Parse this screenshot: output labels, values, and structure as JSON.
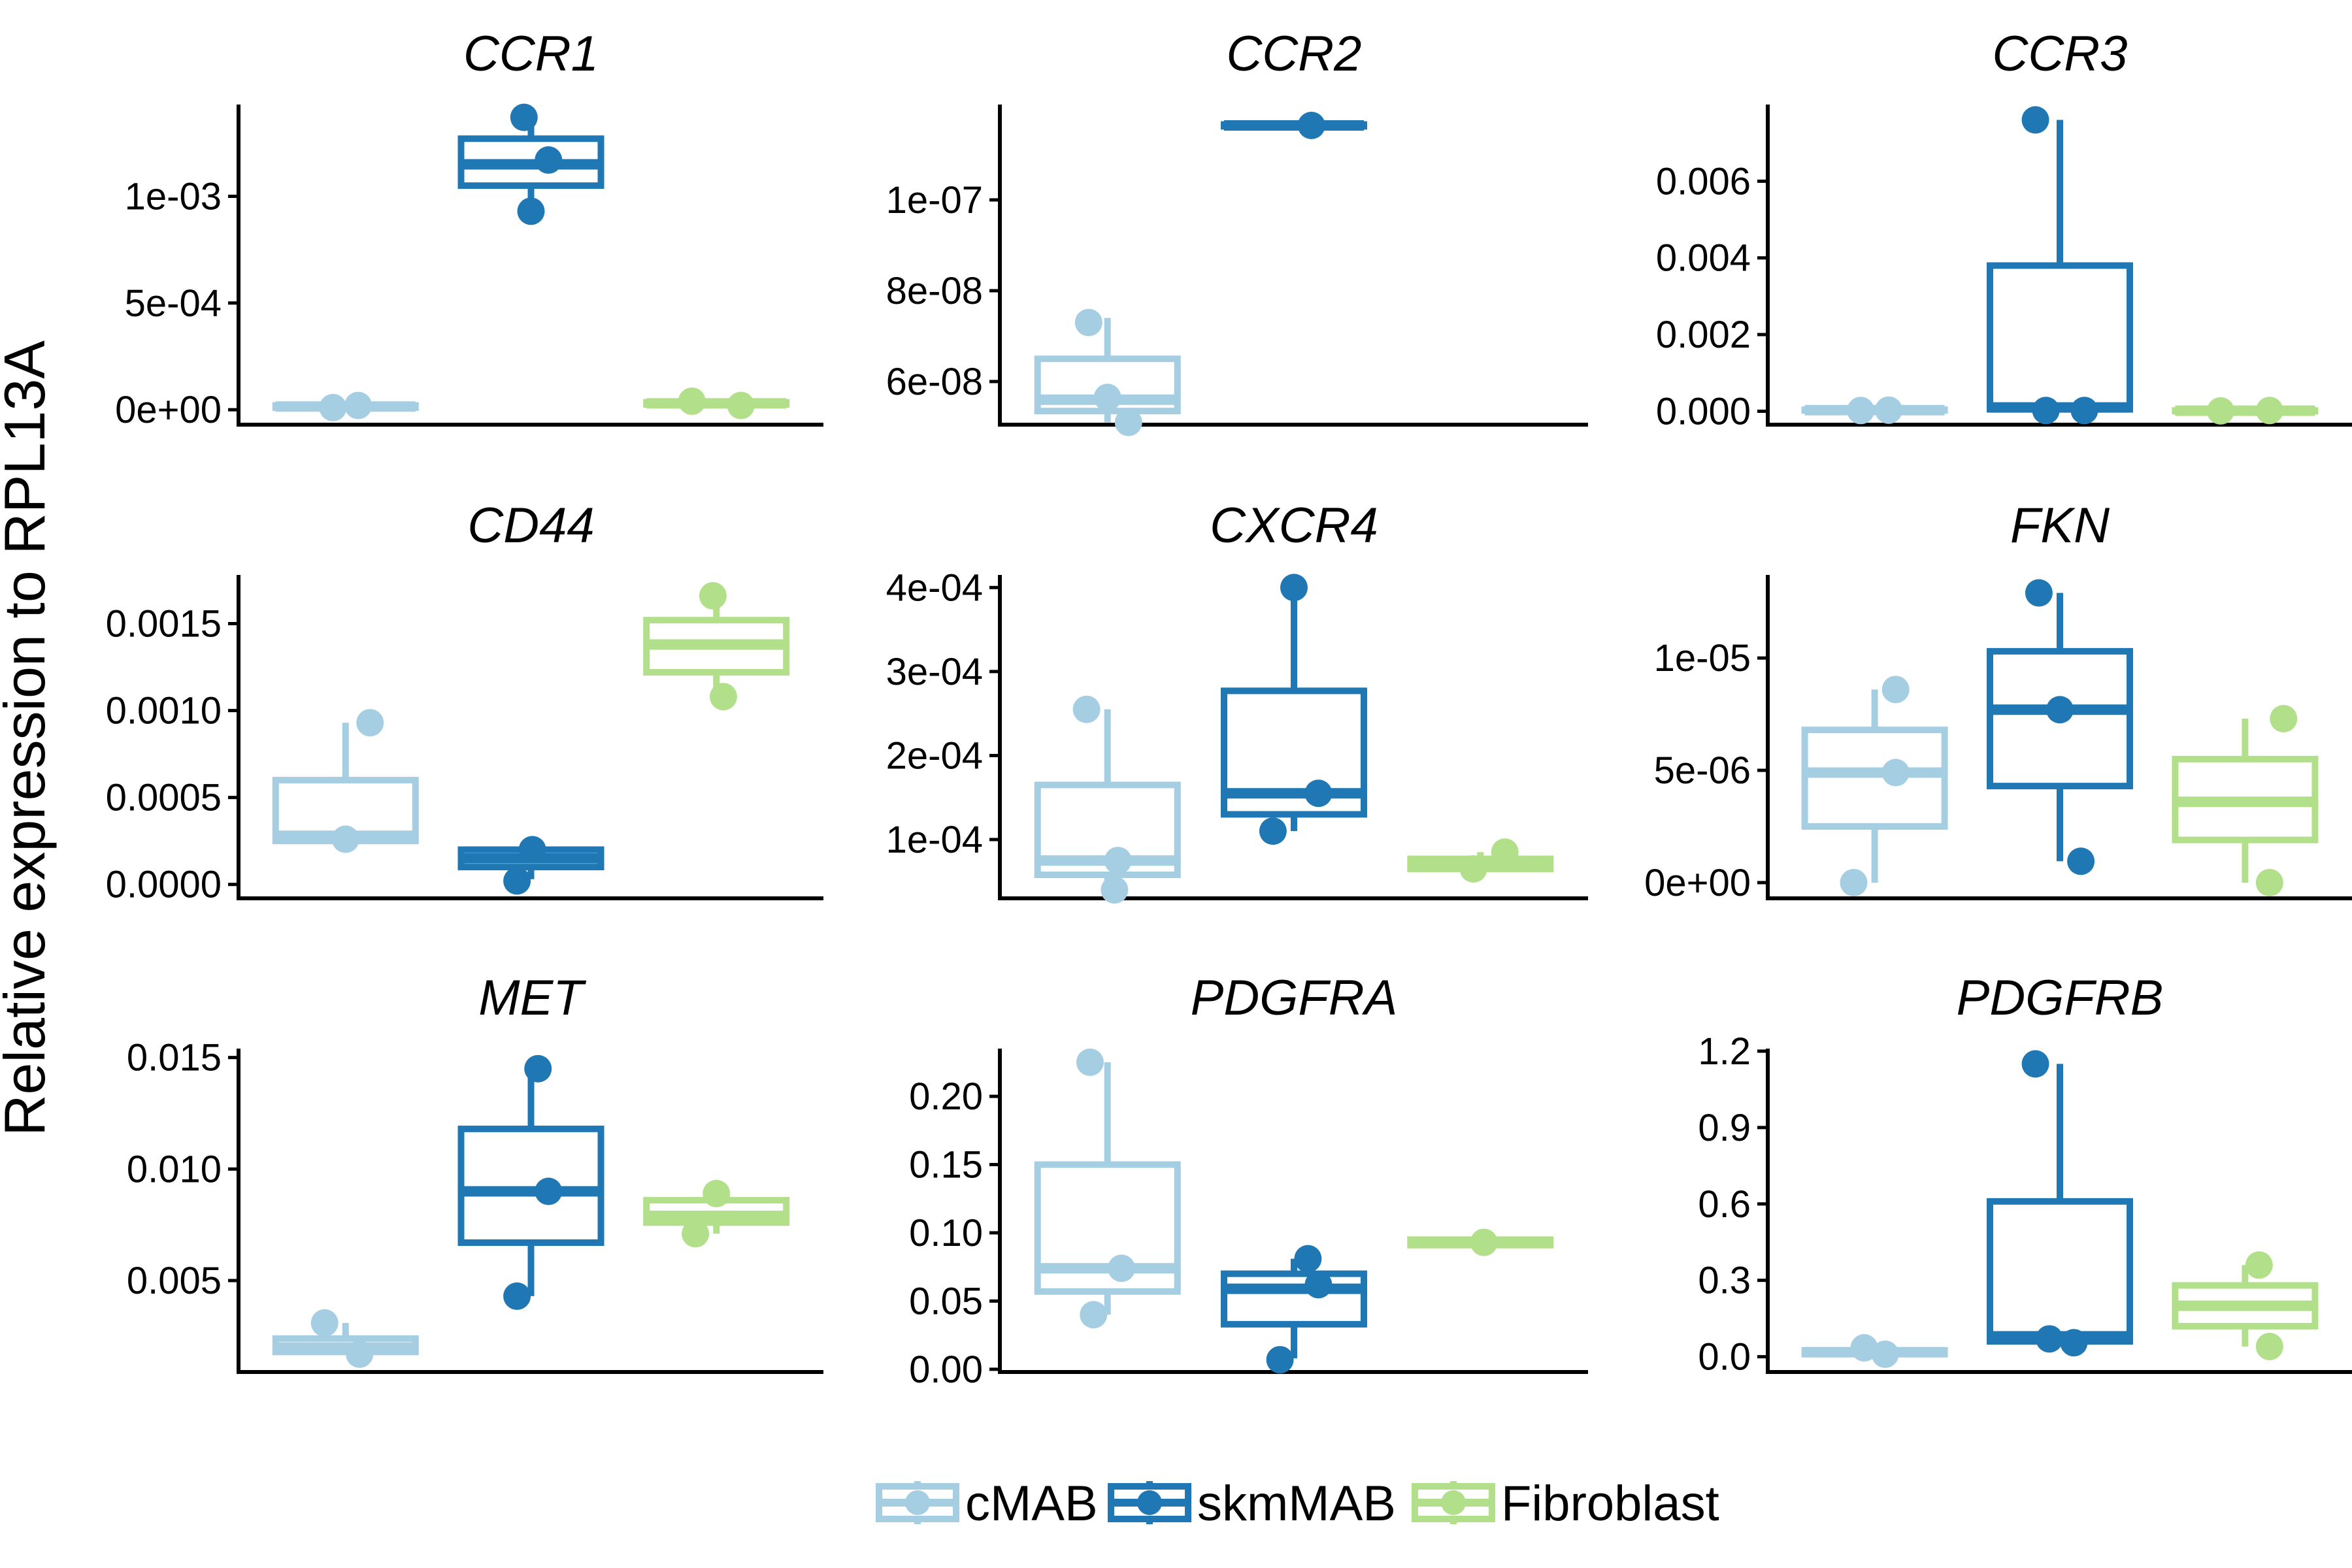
{
  "y_axis_title": "Relative expression to RPL13A",
  "colors": {
    "cMAB": "#a6cee3",
    "skmMAB": "#1f78b4",
    "Fibroblast": "#b2df8a"
  },
  "legend": {
    "entries": [
      {
        "label": "cMAB",
        "color": "#a6cee3"
      },
      {
        "label": "skmMAB",
        "color": "#1f78b4"
      },
      {
        "label": "Fibroblast",
        "color": "#b2df8a"
      }
    ]
  },
  "chart_data": [
    {
      "type": "box",
      "title": "CCR1",
      "ylim": [
        -7e-05,
        0.00143
      ],
      "yticks": [
        {
          "v": 0,
          "label": "0e+00"
        },
        {
          "v": 0.0005,
          "label": "5e-04"
        },
        {
          "v": 0.001,
          "label": "1e-03"
        }
      ],
      "groups": [
        {
          "name": "cMAB",
          "box": [
            5e-06,
            1e-05,
            1.5e-05,
            2e-05,
            2.5e-05
          ],
          "points": [
            {
              "x": -0.18,
              "y": 1e-05
            },
            {
              "x": 0.18,
              "y": 2e-05
            }
          ]
        },
        {
          "name": "skmMAB",
          "box": [
            0.00092,
            0.00105,
            0.00115,
            0.00127,
            0.00137
          ],
          "points": [
            {
              "x": -0.1,
              "y": 0.00137
            },
            {
              "x": 0.0,
              "y": 0.00093
            },
            {
              "x": 0.25,
              "y": 0.00117
            }
          ]
        },
        {
          "name": "Fibroblast",
          "box": [
            2e-05,
            2.5e-05,
            3e-05,
            3.5e-05,
            4e-05
          ],
          "points": [
            {
              "x": -0.35,
              "y": 4e-05
            },
            {
              "x": 0.35,
              "y": 2e-05
            }
          ]
        }
      ]
    },
    {
      "type": "box",
      "title": "CCR2",
      "ylim": [
        5.05e-08,
        1.21e-07
      ],
      "yticks": [
        {
          "v": 6e-08,
          "label": "6e-08"
        },
        {
          "v": 8e-08,
          "label": "8e-08"
        },
        {
          "v": 1e-07,
          "label": "1e-07"
        }
      ],
      "groups": [
        {
          "name": "cMAB",
          "box": [
            5.1e-08,
            5.35e-08,
            5.6e-08,
            6.5e-08,
            7.4e-08
          ],
          "points": [
            {
              "x": -0.27,
              "y": 7.3e-08
            },
            {
              "x": 0.0,
              "y": 5.65e-08
            },
            {
              "x": 0.3,
              "y": 5.1e-08
            }
          ]
        },
        {
          "name": "skmMAB",
          "box": [
            1.16e-07,
            1.162e-07,
            1.164e-07,
            1.166e-07,
            1.168e-07
          ],
          "points": [
            {
              "x": 0.25,
              "y": 1.164e-07
            }
          ]
        },
        {
          "name": "Fibroblast",
          "box": null,
          "points": []
        }
      ]
    },
    {
      "type": "box",
      "title": "CCR3",
      "ylim": [
        -0.00035,
        0.008
      ],
      "yticks": [
        {
          "v": 0,
          "label": "0.000"
        },
        {
          "v": 0.002,
          "label": "0.002"
        },
        {
          "v": 0.004,
          "label": "0.004"
        },
        {
          "v": 0.006,
          "label": "0.006"
        }
      ],
      "groups": [
        {
          "name": "cMAB",
          "box": [
            1e-05,
            2e-05,
            3e-05,
            4e-05,
            5e-05
          ],
          "points": [
            {
              "x": -0.2,
              "y": 2e-05
            },
            {
              "x": 0.2,
              "y": 3e-05
            }
          ]
        },
        {
          "name": "skmMAB",
          "box": [
            2e-05,
            5e-05,
            0.0001,
            0.0038,
            0.0076
          ],
          "points": [
            {
              "x": -0.35,
              "y": 0.0076
            },
            {
              "x": -0.2,
              "y": 2e-05
            },
            {
              "x": 0.35,
              "y": 2e-05
            }
          ]
        },
        {
          "name": "Fibroblast",
          "box": [
            5e-06,
            1e-05,
            1.5e-05,
            2e-05,
            2.5e-05
          ],
          "points": [
            {
              "x": -0.35,
              "y": 1e-05
            },
            {
              "x": 0.35,
              "y": 2e-05
            }
          ]
        }
      ]
    },
    {
      "type": "box",
      "title": "CD44",
      "ylim": [
        -8e-05,
        0.00178
      ],
      "yticks": [
        {
          "v": 0,
          "label": "0.0000"
        },
        {
          "v": 0.0005,
          "label": "0.0005"
        },
        {
          "v": 0.001,
          "label": "0.0010"
        },
        {
          "v": 0.0015,
          "label": "0.0015"
        }
      ],
      "groups": [
        {
          "name": "cMAB",
          "box": [
            0.00025,
            0.00025,
            0.00028,
            0.0006,
            0.00093
          ],
          "points": [
            {
              "x": 0.0,
              "y": 0.00026
            },
            {
              "x": 0.35,
              "y": 0.00093
            }
          ]
        },
        {
          "name": "skmMAB",
          "box": [
            3e-05,
            0.0001,
            0.00015,
            0.0002,
            0.00022
          ],
          "points": [
            {
              "x": -0.2,
              "y": 2e-05
            },
            {
              "x": 0.02,
              "y": 0.0002
            }
          ]
        },
        {
          "name": "Fibroblast",
          "box": [
            0.00108,
            0.00122,
            0.00138,
            0.00152,
            0.00166
          ],
          "points": [
            {
              "x": -0.05,
              "y": 0.00166
            },
            {
              "x": 0.1,
              "y": 0.00108
            }
          ]
        }
      ]
    },
    {
      "type": "box",
      "title": "CXCR4",
      "ylim": [
        3e-05,
        0.000415
      ],
      "yticks": [
        {
          "v": 0.0001,
          "label": "1e-04"
        },
        {
          "v": 0.0002,
          "label": "2e-04"
        },
        {
          "v": 0.0003,
          "label": "3e-04"
        },
        {
          "v": 0.0004,
          "label": "4e-04"
        }
      ],
      "groups": [
        {
          "name": "cMAB",
          "box": [
            4e-05,
            5.8e-05,
            7.5e-05,
            0.000165,
            0.000255
          ],
          "points": [
            {
              "x": -0.3,
              "y": 0.000255
            },
            {
              "x": 0.1,
              "y": 4e-05
            },
            {
              "x": 0.15,
              "y": 7.5e-05
            }
          ]
        },
        {
          "name": "skmMAB",
          "box": [
            0.00011,
            0.00013,
            0.000155,
            0.000277,
            0.0004
          ],
          "points": [
            {
              "x": -0.3,
              "y": 0.00011
            },
            {
              "x": 0.0,
              "y": 0.0004
            },
            {
              "x": 0.35,
              "y": 0.000155
            }
          ]
        },
        {
          "name": "Fibroblast",
          "box": [
            6e-05,
            6.5e-05,
            7e-05,
            7.7e-05,
            8.5e-05
          ],
          "points": [
            {
              "x": -0.1,
              "y": 6.5e-05
            },
            {
              "x": 0.35,
              "y": 8.5e-05
            }
          ]
        }
      ]
    },
    {
      "type": "box",
      "title": "FKN",
      "ylim": [
        -7e-07,
        1.37e-05
      ],
      "yticks": [
        {
          "v": 0,
          "label": "0e+00"
        },
        {
          "v": 5e-06,
          "label": "5e-06"
        },
        {
          "v": 1e-05,
          "label": "1e-05"
        }
      ],
      "groups": [
        {
          "name": "cMAB",
          "box": [
            0.0,
            2.5e-06,
            4.9e-06,
            6.8e-06,
            8.6e-06
          ],
          "points": [
            {
              "x": -0.3,
              "y": 0.0
            },
            {
              "x": 0.3,
              "y": 4.9e-06
            },
            {
              "x": 0.3,
              "y": 8.6e-06
            }
          ]
        },
        {
          "name": "skmMAB",
          "box": [
            9.5e-07,
            4.3e-06,
            7.7e-06,
            1.03e-05,
            1.29e-05
          ],
          "points": [
            {
              "x": -0.3,
              "y": 1.29e-05
            },
            {
              "x": 0.0,
              "y": 7.7e-06
            },
            {
              "x": 0.3,
              "y": 9.5e-07
            }
          ]
        },
        {
          "name": "Fibroblast",
          "box": [
            0.0,
            1.9e-06,
            3.6e-06,
            5.5e-06,
            7.3e-06
          ],
          "points": [
            {
              "x": 0.35,
              "y": 0.0
            },
            {
              "x": 0.55,
              "y": 7.3e-06
            }
          ]
        }
      ]
    },
    {
      "type": "box",
      "title": "MET",
      "ylim": [
        0.0009,
        0.0154
      ],
      "yticks": [
        {
          "v": 0.005,
          "label": "0.005"
        },
        {
          "v": 0.01,
          "label": "0.010"
        },
        {
          "v": 0.015,
          "label": "0.015"
        }
      ],
      "groups": [
        {
          "name": "cMAB",
          "box": [
            0.0017,
            0.0018,
            0.002,
            0.0024,
            0.0031
          ],
          "points": [
            {
              "x": -0.3,
              "y": 0.0031
            },
            {
              "x": 0.2,
              "y": 0.0017
            }
          ]
        },
        {
          "name": "skmMAB",
          "box": [
            0.0043,
            0.0067,
            0.009,
            0.0118,
            0.0145
          ],
          "points": [
            {
              "x": -0.2,
              "y": 0.0043
            },
            {
              "x": 0.1,
              "y": 0.0145
            },
            {
              "x": 0.25,
              "y": 0.009
            }
          ]
        },
        {
          "name": "Fibroblast",
          "box": [
            0.0071,
            0.0076,
            0.0079,
            0.0086,
            0.0089
          ],
          "points": [
            {
              "x": -0.3,
              "y": 0.0071
            },
            {
              "x": 0.0,
              "y": 0.0089
            }
          ]
        }
      ]
    },
    {
      "type": "box",
      "title": "PDGFRA",
      "ylim": [
        -0.002,
        0.235
      ],
      "yticks": [
        {
          "v": 0,
          "label": "0.00"
        },
        {
          "v": 0.05,
          "label": "0.05"
        },
        {
          "v": 0.1,
          "label": "0.10"
        },
        {
          "v": 0.15,
          "label": "0.15"
        },
        {
          "v": 0.2,
          "label": "0.20"
        }
      ],
      "groups": [
        {
          "name": "cMAB",
          "box": [
            0.04,
            0.057,
            0.074,
            0.15,
            0.225
          ],
          "points": [
            {
              "x": -0.25,
              "y": 0.225
            },
            {
              "x": -0.2,
              "y": 0.04
            },
            {
              "x": 0.2,
              "y": 0.074
            }
          ]
        },
        {
          "name": "skmMAB",
          "box": [
            0.008,
            0.033,
            0.059,
            0.07,
            0.081
          ],
          "points": [
            {
              "x": -0.2,
              "y": 0.007
            },
            {
              "x": 0.2,
              "y": 0.081
            },
            {
              "x": 0.35,
              "y": 0.062
            }
          ]
        },
        {
          "name": "Fibroblast",
          "box": [
            0.09,
            0.091,
            0.093,
            0.095,
            0.096
          ],
          "points": [
            {
              "x": 0.05,
              "y": 0.093
            }
          ]
        }
      ]
    },
    {
      "type": "box",
      "title": "PDGFRB",
      "ylim": [
        -0.06,
        1.21
      ],
      "yticks": [
        {
          "v": 0,
          "label": "0.0"
        },
        {
          "v": 0.3,
          "label": "0.3"
        },
        {
          "v": 0.6,
          "label": "0.6"
        },
        {
          "v": 0.9,
          "label": "0.9"
        },
        {
          "v": 1.2,
          "label": "1.2"
        }
      ],
      "groups": [
        {
          "name": "cMAB",
          "box": [
            0.005,
            0.01,
            0.018,
            0.025,
            0.035
          ],
          "points": [
            {
              "x": -0.15,
              "y": 0.035
            },
            {
              "x": 0.15,
              "y": 0.01
            }
          ]
        },
        {
          "name": "skmMAB",
          "box": [
            0.05,
            0.06,
            0.08,
            0.61,
            1.15
          ],
          "points": [
            {
              "x": -0.35,
              "y": 1.15
            },
            {
              "x": -0.15,
              "y": 0.07
            },
            {
              "x": 0.2,
              "y": 0.055
            }
          ]
        },
        {
          "name": "Fibroblast",
          "box": [
            0.04,
            0.12,
            0.2,
            0.28,
            0.36
          ],
          "points": [
            {
              "x": 0.2,
              "y": 0.36
            },
            {
              "x": 0.35,
              "y": 0.04
            }
          ]
        }
      ]
    }
  ]
}
